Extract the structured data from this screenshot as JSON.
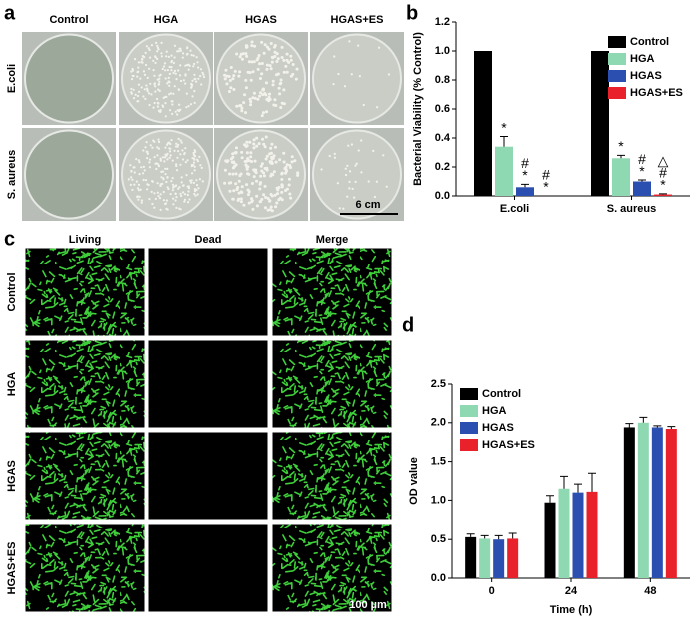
{
  "panel_a": {
    "label": "a",
    "columns": [
      "Control",
      "HGA",
      "HGAS",
      "HGAS+ES"
    ],
    "rows": [
      "E.coli",
      "S. aureus"
    ],
    "scale_bar": "6 cm"
  },
  "panel_c": {
    "label": "c",
    "columns": [
      "Living",
      "Dead",
      "Merge"
    ],
    "rows": [
      "Control",
      "HGA",
      "HGAS",
      "HGAS+ES"
    ],
    "scale_bar": "100 µm"
  },
  "chart_data": [
    {
      "type": "bar",
      "panel_label": "b",
      "y_label": "Bacterial Viability (% Control)",
      "categories": [
        "E.coli",
        "S. aureus"
      ],
      "series": [
        {
          "name": "Control",
          "color": "#000000",
          "values": [
            1,
            1
          ]
        },
        {
          "name": "HGA",
          "color": "#8fd9b2",
          "values": [
            0.34,
            0.26
          ],
          "errors": [
            0.07,
            0.02
          ],
          "marks": [
            [
              "*"
            ],
            [
              "*"
            ]
          ]
        },
        {
          "name": "HGAS",
          "color": "#2a4fb0",
          "values": [
            0.06,
            0.1
          ],
          "errors": [
            0.02,
            0.01
          ],
          "marks": [
            [
              "#",
              "*"
            ],
            [
              "#",
              "*"
            ]
          ]
        },
        {
          "name": "HGAS+ES",
          "color": "#e8212b",
          "values": [
            0,
            0.01
          ],
          "errors": [
            0,
            0.005
          ],
          "marks": [
            [
              "#",
              "*"
            ],
            [
              "△",
              "#",
              "*"
            ]
          ]
        }
      ],
      "ylim": [
        0,
        1.2
      ],
      "yticks": [
        {
          "value": 0,
          "label": "0.0"
        },
        0.2,
        0.4,
        0.6,
        0.8,
        {
          "value": 1,
          "label": "1.0"
        },
        1.2
      ],
      "legend": "upper right"
    },
    {
      "type": "bar",
      "panel_label": "d",
      "y_label": "OD value",
      "x_label": "Time (h)",
      "categories": [
        "0",
        "24",
        "48"
      ],
      "series": [
        {
          "name": "Control",
          "color": "#000000",
          "values": [
            0.53,
            0.97,
            1.94
          ],
          "errors": [
            0.04,
            0.09,
            0.05
          ]
        },
        {
          "name": "HGA",
          "color": "#8fd9b2",
          "values": [
            0.51,
            1.15,
            2.0
          ],
          "errors": [
            0.04,
            0.16,
            0.07
          ]
        },
        {
          "name": "HGAS",
          "color": "#2a4fb0",
          "values": [
            0.5,
            1.1,
            1.94
          ],
          "errors": [
            0.05,
            0.11,
            0.02
          ]
        },
        {
          "name": "HGAS+ES",
          "color": "#e8212b",
          "values": [
            0.51,
            1.11,
            1.92
          ],
          "errors": [
            0.07,
            0.24,
            0.03
          ]
        }
      ],
      "ylim": [
        0,
        2.5
      ],
      "yticks": [
        {
          "value": 0,
          "label": "0.0"
        },
        0.5,
        {
          "value": 1,
          "label": "1.0"
        },
        1.5,
        {
          "value": 2,
          "label": "2.0"
        },
        2.5
      ],
      "legend": "upper left"
    }
  ]
}
